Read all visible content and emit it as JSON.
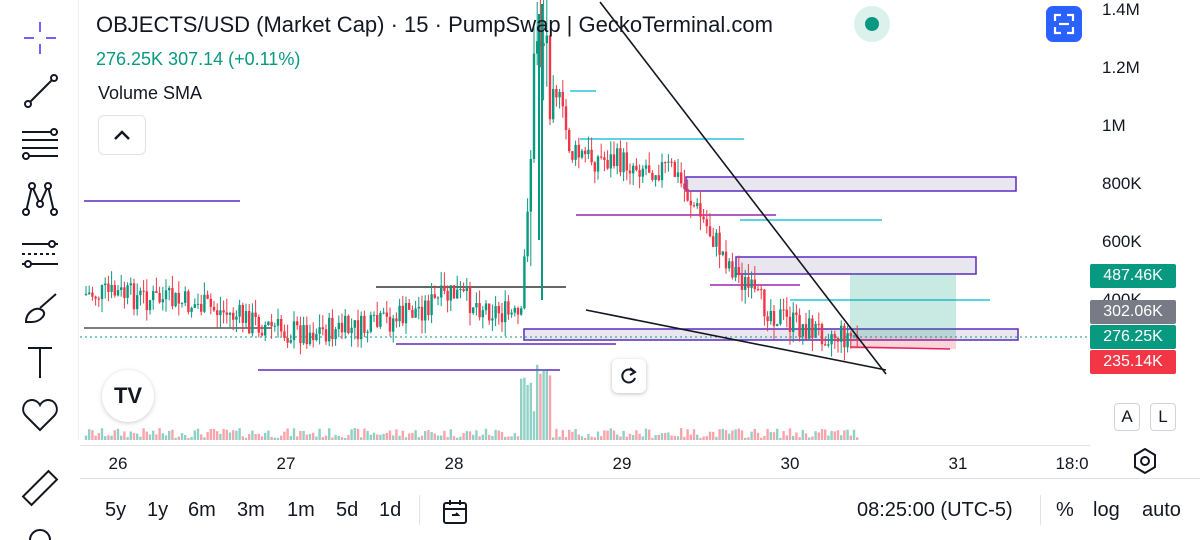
{
  "header": {
    "title": "OBJECTS/USD (Market Cap) · 15 · PumpSwap | GeckoTerminal.com",
    "ohlc": "276.25K  307.14 (+0.11%)",
    "indicator": "Volume SMA"
  },
  "price_scale": {
    "ticks": [
      "1.4M",
      "1.2M",
      "1M",
      "800K",
      "600K",
      "400K"
    ],
    "tags": [
      {
        "label": "487.46K",
        "color": "#089981"
      },
      {
        "label": "302.06K",
        "color": "#787b86"
      },
      {
        "label": "276.25K",
        "color": "#089981"
      },
      {
        "label": "235.14K",
        "color": "#f23645"
      }
    ],
    "auto_label": "A",
    "log_label": "L"
  },
  "time_axis": {
    "labels": [
      "26",
      "27",
      "28",
      "29",
      "30",
      "31",
      "18:0"
    ]
  },
  "bottom_bar": {
    "ranges": [
      "5y",
      "1y",
      "6m",
      "3m",
      "1m",
      "5d",
      "1d"
    ],
    "clock": "08:25:00 (UTC-5)",
    "percent": "%",
    "log": "log",
    "auto": "auto"
  },
  "logo": "TV",
  "colors": {
    "up": "#089981",
    "down": "#f23645",
    "accent": "#2962ff",
    "zone_purple": "#5b2bbf",
    "level_line": "#26c6da"
  },
  "chart_data": {
    "type": "candlestick",
    "series": [
      {
        "name": "OBJECTS/USD (Market Cap)"
      }
    ],
    "x_labels": [
      "26",
      "27",
      "28",
      "29",
      "30",
      "31"
    ],
    "y_ticks": [
      "1.4M",
      "1.2M",
      "1M",
      "800K",
      "600K",
      "400K"
    ],
    "ylim": [
      0,
      1400000
    ],
    "last_price": 276250,
    "profit_target": 487460,
    "stop": 235140,
    "approx_path": [
      {
        "x": "26",
        "y": 420000
      },
      {
        "x": "26.5",
        "y": 380000
      },
      {
        "x": "27",
        "y": 290000
      },
      {
        "x": "27.5",
        "y": 300000
      },
      {
        "x": "28",
        "y": 420000
      },
      {
        "x": "28.4",
        "y": 330000
      },
      {
        "x": "28.5",
        "y": 1400000
      },
      {
        "x": "28.7",
        "y": 900000
      },
      {
        "x": "29.3",
        "y": 850000
      },
      {
        "x": "29.6",
        "y": 560000
      },
      {
        "x": "29.8",
        "y": 400000
      },
      {
        "x": "30",
        "y": 320000
      },
      {
        "x": "30.3",
        "y": 276250
      }
    ]
  },
  "icons": [
    "crosshair-icon",
    "trend-line-icon",
    "fib-icon",
    "pattern-icon",
    "forecast-icon",
    "brush-icon",
    "text-icon",
    "heart-icon",
    "ruler-icon",
    "zoom-icon"
  ]
}
